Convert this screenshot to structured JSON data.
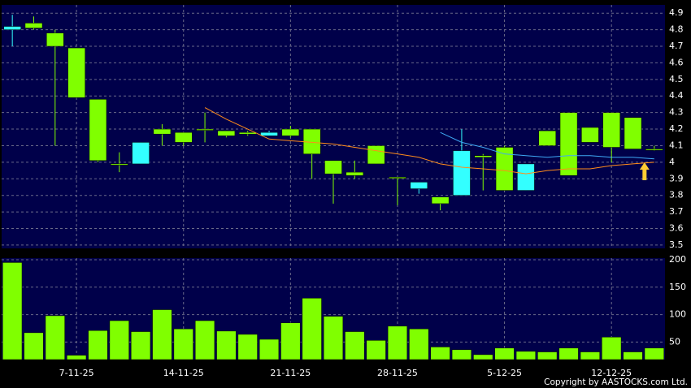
{
  "chart_data": [
    {
      "type": "candlestick",
      "open": [
        4.8,
        4.84,
        4.78,
        4.69,
        4.38,
        3.99,
        3.99,
        4.2,
        4.18,
        4.2,
        4.19,
        4.18,
        4.16,
        4.2,
        4.2,
        4.01,
        3.94,
        4.1,
        3.91,
        3.84,
        3.79,
        3.8,
        4.04,
        4.09,
        3.83,
        4.19,
        4.3,
        4.21,
        4.3,
        4.27,
        4.08
      ],
      "high": [
        4.89,
        4.88,
        4.8,
        4.69,
        4.38,
        4.06,
        4.12,
        4.23,
        4.18,
        4.3,
        4.19,
        4.19,
        4.19,
        4.22,
        4.2,
        4.01,
        4.01,
        4.1,
        3.91,
        3.88,
        3.79,
        4.2,
        4.05,
        4.1,
        3.99,
        4.19,
        4.3,
        4.21,
        4.3,
        4.27,
        4.1
      ],
      "low": [
        4.7,
        4.8,
        4.1,
        4.39,
        4.0,
        3.94,
        3.99,
        4.1,
        4.1,
        4.12,
        4.15,
        4.16,
        4.16,
        4.15,
        3.9,
        3.75,
        3.9,
        3.99,
        3.74,
        3.81,
        3.71,
        3.8,
        3.83,
        3.83,
        3.83,
        4.1,
        3.92,
        4.12,
        4.0,
        4.08,
        4.07
      ],
      "close": [
        4.82,
        4.81,
        4.7,
        4.39,
        4.01,
        3.99,
        4.12,
        4.17,
        4.12,
        4.2,
        4.16,
        4.17,
        4.18,
        4.16,
        4.05,
        3.93,
        3.92,
        3.99,
        3.91,
        3.88,
        3.75,
        4.07,
        4.03,
        3.83,
        3.99,
        4.1,
        3.92,
        4.12,
        4.09,
        4.08,
        4.08
      ],
      "up_color": "#33ffff",
      "down_color": "#80ff00",
      "series": [
        {
          "color": "#ff8c1a",
          "values": [
            null,
            null,
            null,
            null,
            null,
            null,
            null,
            null,
            null,
            4.33,
            4.26,
            4.2,
            4.14,
            4.13,
            4.12,
            4.11,
            4.09,
            4.07,
            4.05,
            4.03,
            3.99,
            3.97,
            3.96,
            3.95,
            3.93,
            3.95,
            3.96,
            3.96,
            3.98,
            3.99,
            4.0
          ]
        },
        {
          "color": "#3fa9f5",
          "values": [
            null,
            null,
            null,
            null,
            null,
            null,
            null,
            null,
            null,
            null,
            null,
            null,
            null,
            null,
            null,
            null,
            null,
            null,
            null,
            null,
            4.18,
            4.12,
            4.09,
            4.05,
            4.04,
            4.03,
            4.04,
            4.04,
            4.03,
            4.03,
            4.02
          ]
        }
      ],
      "ylim": [
        3.48,
        4.95
      ],
      "yticks": [
        3.5,
        3.6,
        3.7,
        3.8,
        3.9,
        4,
        4.1,
        4.2,
        4.3,
        4.4,
        4.5,
        4.6,
        4.7,
        4.8,
        4.9
      ],
      "grid": true
    },
    {
      "type": "bar",
      "categories": [
        null,
        null,
        null,
        "7-11-25",
        null,
        null,
        null,
        null,
        "14-11-25",
        null,
        null,
        null,
        null,
        "21-11-25",
        null,
        null,
        null,
        null,
        "28-11-25",
        null,
        null,
        null,
        null,
        "5-12-25",
        null,
        null,
        null,
        null,
        "12-12-25",
        null,
        null
      ],
      "values": [
        195,
        67,
        98,
        26,
        71,
        89,
        69,
        109,
        74,
        89,
        70,
        64,
        55,
        85,
        130,
        97,
        69,
        53,
        79,
        74,
        41,
        36,
        27,
        39,
        33,
        32,
        39,
        32,
        59,
        32,
        39
      ],
      "color": "#80ff00",
      "ylim": [
        18,
        203
      ],
      "yticks": [
        50,
        100,
        150,
        200
      ],
      "grid": true
    }
  ],
  "copyright": "Copyright by AASTOCKS.com Ltd."
}
